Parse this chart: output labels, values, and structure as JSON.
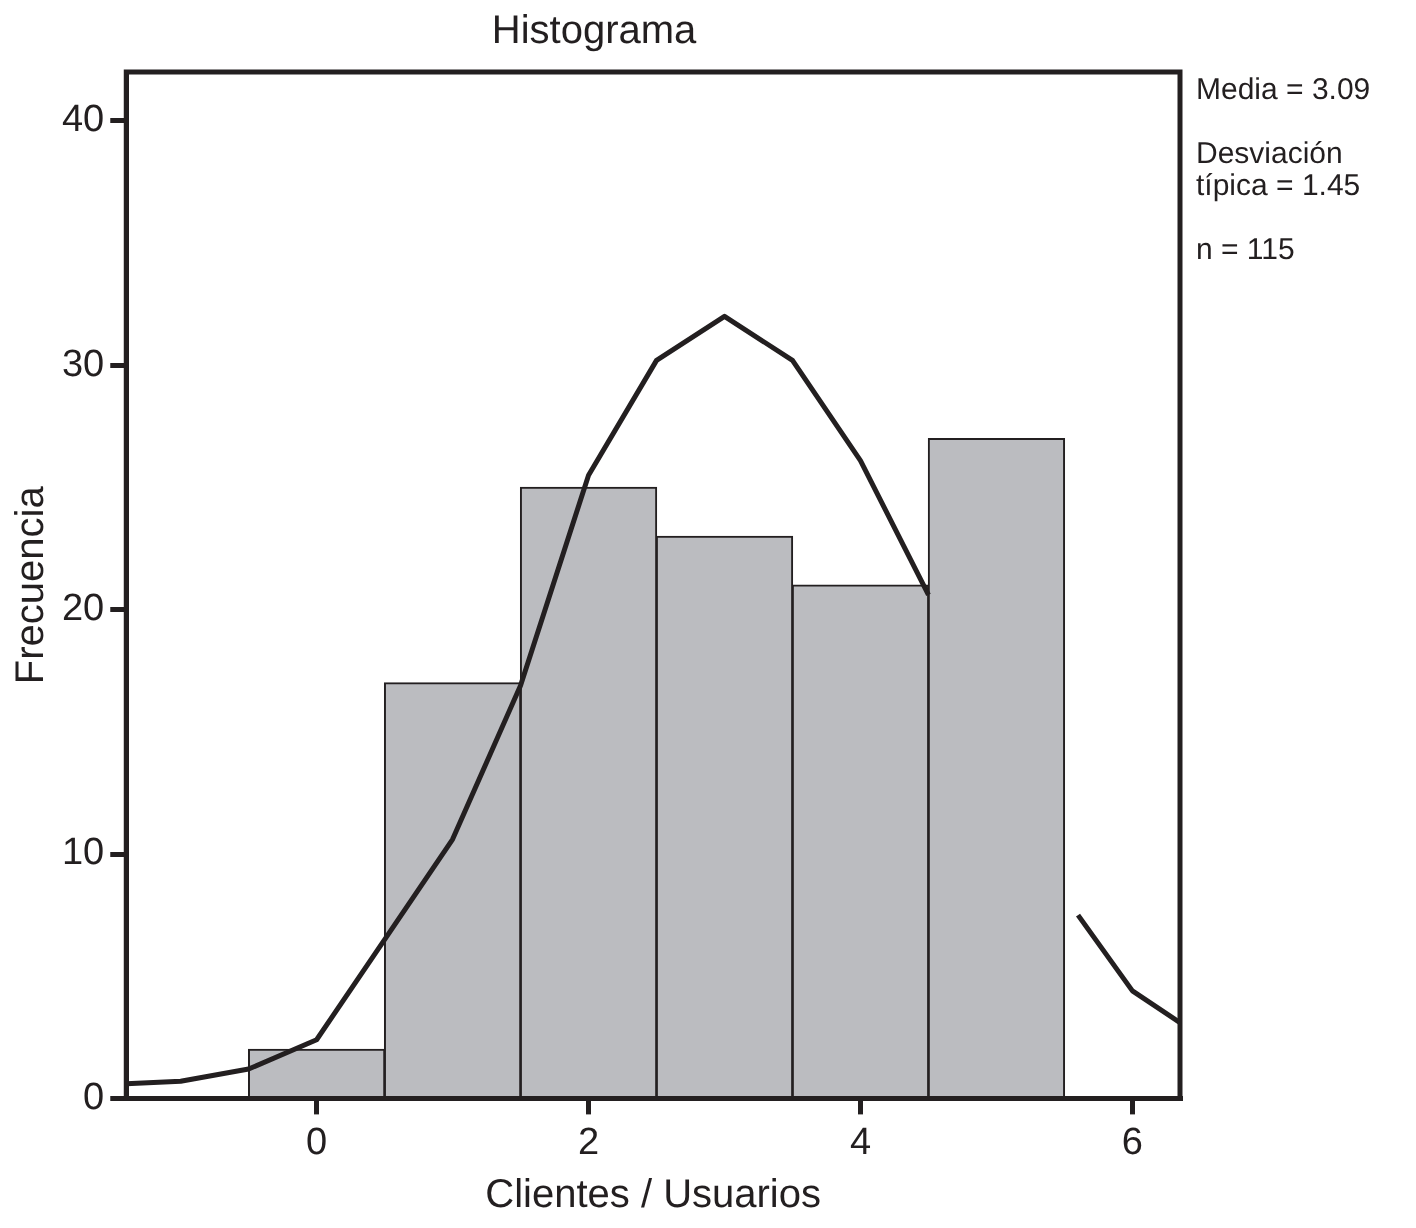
{
  "chart_data": {
    "type": "histogram",
    "title": "Histograma",
    "xlabel": "Clientes / Usuarios",
    "ylabel": "Frecuencia",
    "bins": [
      -0.5,
      0.5,
      1.5,
      2.5,
      3.5,
      4.5,
      5.5
    ],
    "values": [
      2,
      17,
      25,
      23,
      21,
      27
    ],
    "color": "#bbbcc0",
    "xlim": [
      -1.4,
      6.35
    ],
    "ylim": [
      0,
      42
    ],
    "xticks": [
      0,
      2,
      4,
      6
    ],
    "yticks": [
      0,
      10,
      20,
      30,
      40
    ],
    "grid": false,
    "annotations": [
      "Media = 3.09",
      "Desviación típica = 1.45",
      "n = 115"
    ],
    "series": [
      {
        "type": "line",
        "color": "#231f20",
        "x": [
          -1.4,
          -1.0,
          -0.5,
          0,
          0.5,
          1,
          1.5,
          2,
          2.5,
          3,
          3.5,
          4,
          4.5,
          5,
          5.5,
          5.6,
          6,
          6.35
        ],
        "values": [
          0.6,
          0.7,
          1.2,
          2.4,
          6.5,
          10.6,
          16.9,
          25.5,
          30.2,
          32,
          30.2,
          26.1,
          20.6,
          null,
          null,
          7.5,
          4.4,
          3.1
        ]
      }
    ]
  }
}
